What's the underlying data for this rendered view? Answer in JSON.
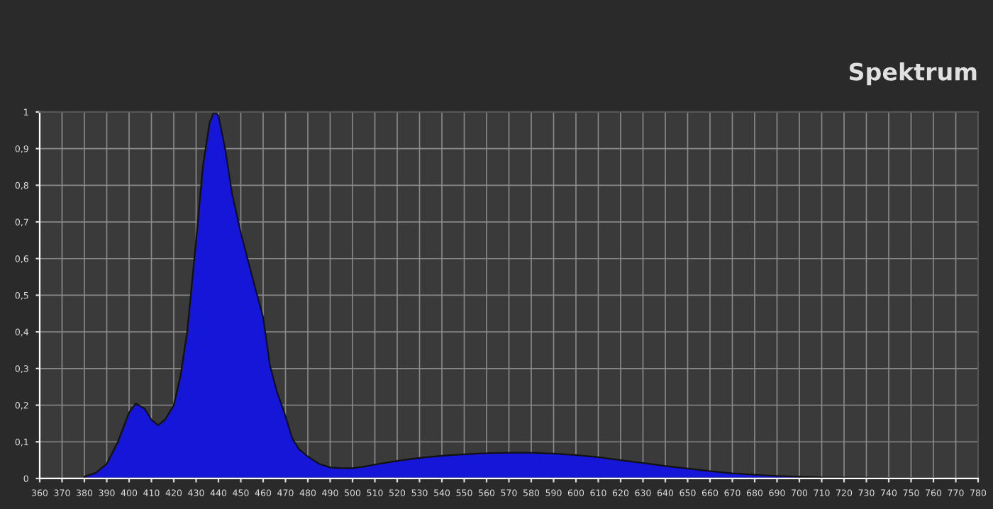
{
  "chart_data": {
    "type": "area",
    "title": "Spektrum",
    "x": [
      380,
      385,
      390,
      395,
      400,
      403,
      407,
      410,
      413,
      416,
      420,
      423,
      426,
      430,
      433,
      436,
      438,
      440,
      443,
      446,
      450,
      453,
      456,
      460,
      463,
      466,
      470,
      473,
      476,
      480,
      485,
      490,
      495,
      500,
      505,
      510,
      520,
      530,
      540,
      550,
      560,
      570,
      580,
      590,
      600,
      610,
      620,
      630,
      640,
      650,
      660,
      670,
      680,
      690,
      700,
      710,
      730,
      750,
      780
    ],
    "series": [
      {
        "color": "#1616d8",
        "values": [
          0.005,
          0.015,
          0.04,
          0.1,
          0.18,
          0.205,
          0.19,
          0.16,
          0.145,
          0.16,
          0.2,
          0.28,
          0.4,
          0.65,
          0.85,
          0.97,
          1.0,
          0.99,
          0.9,
          0.78,
          0.67,
          0.6,
          0.53,
          0.44,
          0.31,
          0.24,
          0.17,
          0.11,
          0.08,
          0.06,
          0.04,
          0.03,
          0.028,
          0.028,
          0.032,
          0.038,
          0.048,
          0.056,
          0.062,
          0.066,
          0.069,
          0.07,
          0.07,
          0.068,
          0.064,
          0.058,
          0.05,
          0.042,
          0.034,
          0.027,
          0.02,
          0.014,
          0.01,
          0.007,
          0.005,
          0.003,
          0.002,
          0.001,
          0.0
        ]
      }
    ],
    "xlim": [
      360,
      780
    ],
    "xticks": [
      360,
      370,
      380,
      390,
      400,
      410,
      420,
      430,
      440,
      450,
      460,
      470,
      480,
      490,
      500,
      510,
      520,
      530,
      540,
      550,
      560,
      570,
      580,
      590,
      600,
      610,
      620,
      630,
      640,
      650,
      660,
      670,
      680,
      690,
      700,
      710,
      720,
      730,
      740,
      750,
      760,
      770,
      780
    ],
    "ylim": [
      0,
      1
    ],
    "yticks": [
      0,
      {
        "value": 0.1,
        "label": "0,1"
      },
      {
        "value": 0.2,
        "label": "0,2"
      },
      {
        "value": 0.3,
        "label": "0,3"
      },
      {
        "value": 0.4,
        "label": "0,4"
      },
      {
        "value": 0.5,
        "label": "0,5"
      },
      {
        "value": 0.6,
        "label": "0,6"
      },
      {
        "value": 0.7,
        "label": "0,7"
      },
      {
        "value": 0.8,
        "label": "0,8"
      },
      {
        "value": 0.9,
        "label": "0,9"
      },
      1
    ],
    "grid": true,
    "legend": false
  }
}
